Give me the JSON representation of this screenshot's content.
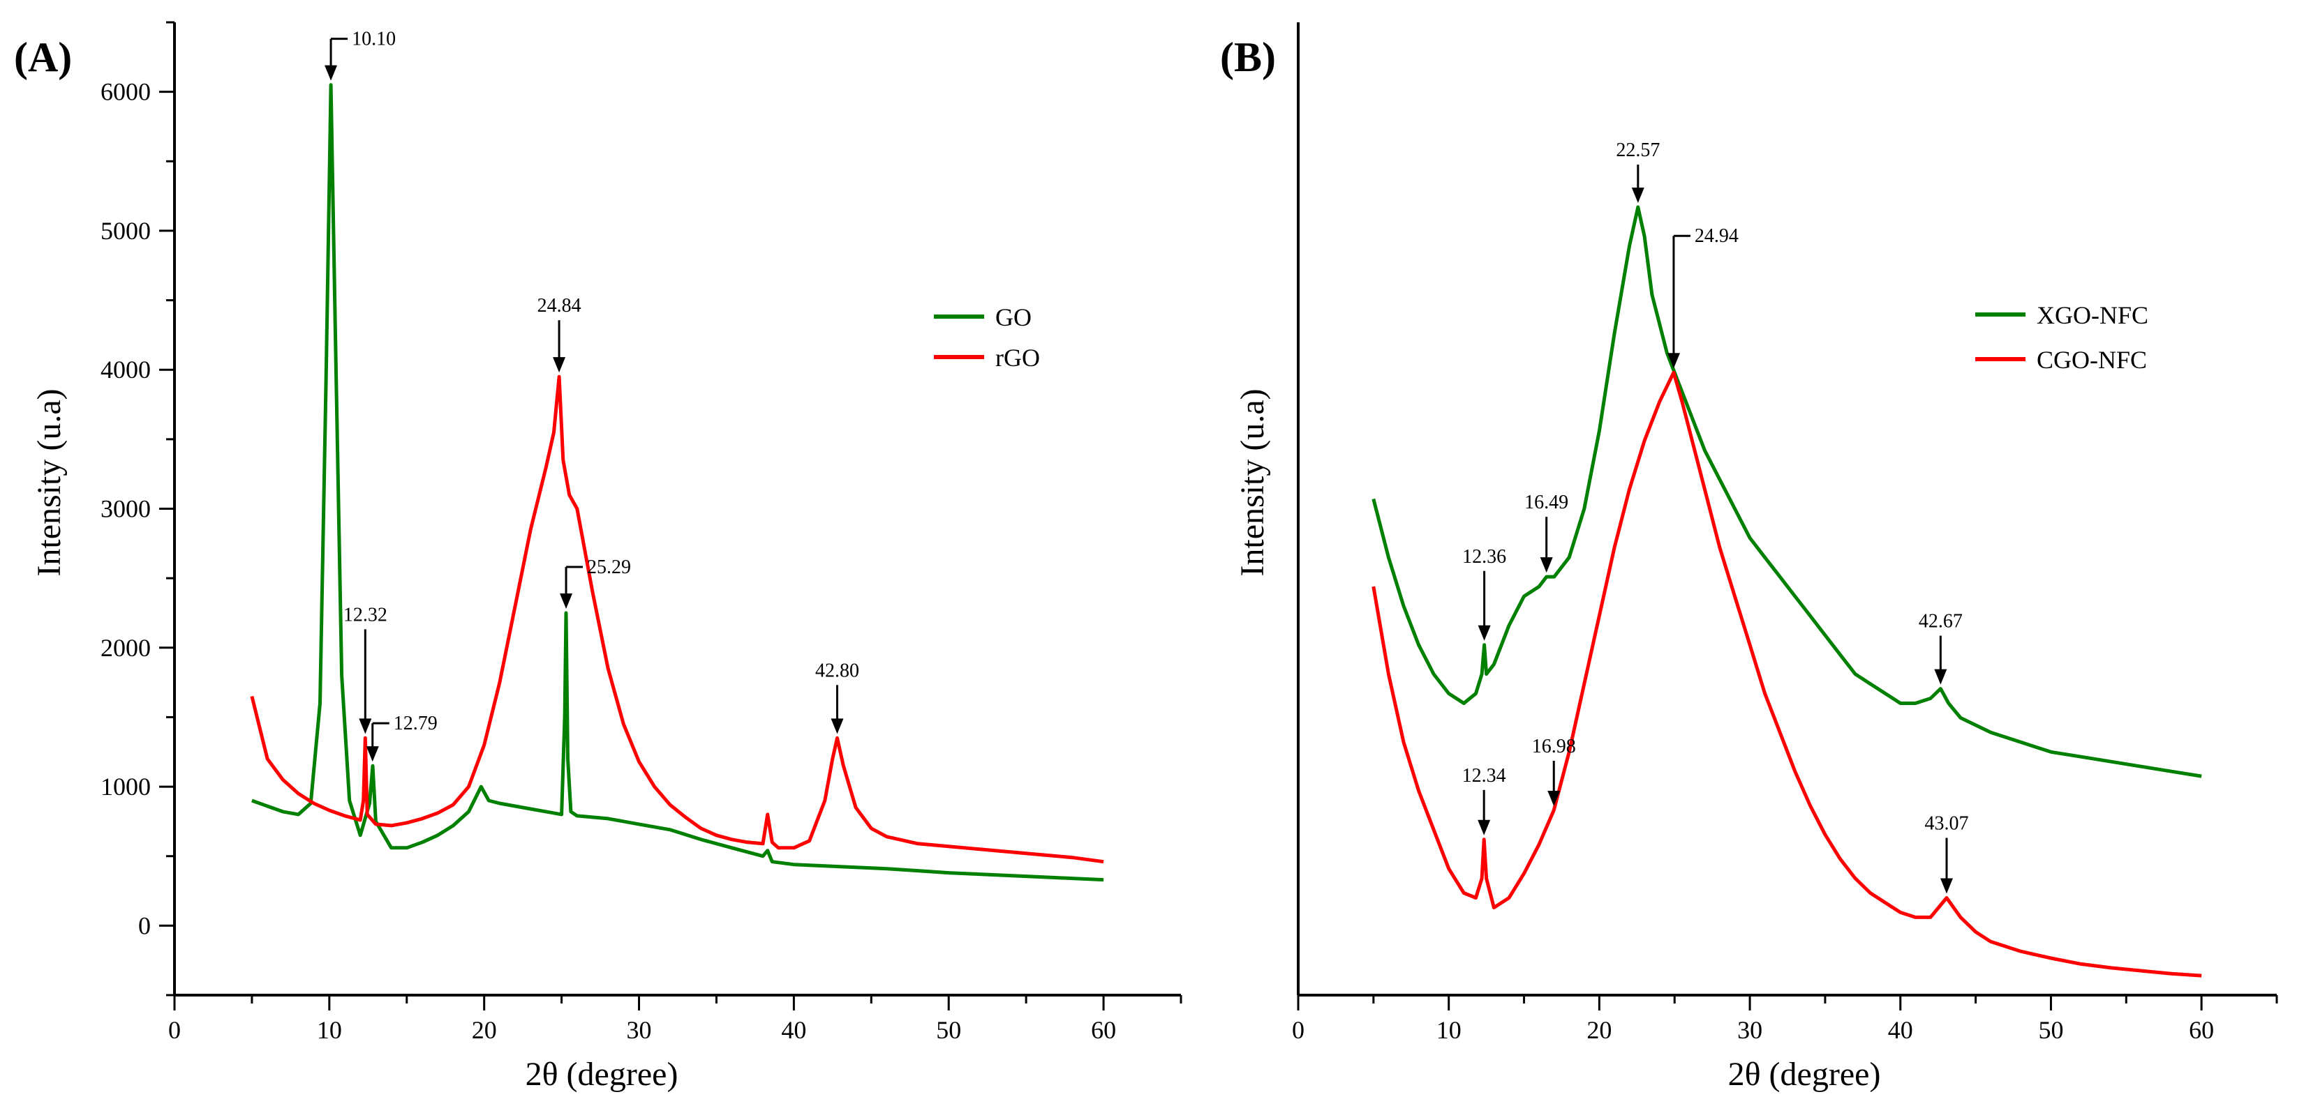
{
  "chart_data": [
    {
      "type": "line",
      "panel_label": "(A)",
      "xlabel": "2θ (degree)",
      "ylabel": "Intensity (u.a)",
      "xlim": [
        0,
        65
      ],
      "ylim": [
        -500,
        6500
      ],
      "xticks": [
        "0",
        "10",
        "20",
        "30",
        "40",
        "50",
        "60"
      ],
      "yticks": [
        "0",
        "1000",
        "2000",
        "3000",
        "4000",
        "5000",
        "6000"
      ],
      "legend_position": "upper-right",
      "series": [
        {
          "name": "GO",
          "color": "#008000",
          "x": [
            5,
            6,
            7,
            8,
            8.8,
            9.4,
            9.8,
            10.1,
            10.4,
            10.8,
            11.3,
            12,
            12.6,
            12.8,
            13,
            14,
            15,
            16,
            17,
            18,
            19,
            19.8,
            20.3,
            21,
            22,
            23,
            24,
            25,
            25.2,
            25.29,
            25.4,
            25.6,
            26,
            28,
            30,
            32,
            34,
            36,
            38,
            38.3,
            38.6,
            40,
            42,
            44,
            46,
            48,
            50,
            52,
            54,
            56,
            58,
            60
          ],
          "y": [
            900,
            860,
            820,
            800,
            880,
            1600,
            4000,
            6050,
            4200,
            1800,
            900,
            650,
            880,
            1150,
            750,
            560,
            560,
            600,
            650,
            720,
            820,
            1000,
            900,
            880,
            860,
            840,
            820,
            800,
            1500,
            2250,
            1200,
            820,
            790,
            770,
            730,
            690,
            620,
            560,
            500,
            540,
            460,
            440,
            430,
            420,
            410,
            395,
            380,
            370,
            360,
            350,
            340,
            330
          ]
        },
        {
          "name": "rGO",
          "color": "#ff0000",
          "x": [
            5,
            6,
            7,
            8,
            9,
            10,
            11,
            12,
            12.2,
            12.32,
            12.45,
            13,
            14,
            15,
            16,
            17,
            18,
            19,
            20,
            21,
            22,
            23,
            24,
            24.5,
            24.84,
            25.1,
            25.5,
            26,
            27,
            28,
            29,
            30,
            31,
            32,
            33,
            34,
            35,
            36,
            37,
            38,
            38.3,
            38.6,
            39,
            40,
            41,
            42,
            42.5,
            42.8,
            43.2,
            44,
            45,
            46,
            48,
            50,
            52,
            54,
            56,
            58,
            60
          ],
          "y": [
            1650,
            1200,
            1050,
            950,
            880,
            830,
            790,
            760,
            900,
            1350,
            800,
            730,
            720,
            740,
            770,
            810,
            870,
            1000,
            1300,
            1750,
            2300,
            2850,
            3300,
            3550,
            3950,
            3350,
            3100,
            3000,
            2400,
            1850,
            1450,
            1180,
            1000,
            870,
            780,
            700,
            650,
            620,
            600,
            590,
            800,
            600,
            560,
            560,
            610,
            900,
            1200,
            1350,
            1150,
            850,
            700,
            640,
            590,
            570,
            550,
            530,
            510,
            490,
            460
          ]
        }
      ],
      "annotations": [
        {
          "label": "10.10",
          "x": 10.1,
          "y": 6050
        },
        {
          "label": "12.32",
          "x": 12.32,
          "y": 1350
        },
        {
          "label": "12.79",
          "x": 12.79,
          "y": 1150
        },
        {
          "label": "24.84",
          "x": 24.84,
          "y": 3950
        },
        {
          "label": "25.29",
          "x": 25.29,
          "y": 2250
        },
        {
          "label": "42.80",
          "x": 42.8,
          "y": 1350
        }
      ]
    },
    {
      "type": "line",
      "panel_label": "(B)",
      "xlabel": "2θ (degree)",
      "ylabel": "Intensity (u.a)",
      "xlim": [
        0,
        65
      ],
      "ylim": [
        0,
        100
      ],
      "xticks": [
        "0",
        "10",
        "20",
        "30",
        "40",
        "50",
        "60"
      ],
      "yticks": [],
      "legend_position": "upper-right",
      "series": [
        {
          "name": "XGO-NFC",
          "color": "#008000",
          "x": [
            5,
            6,
            7,
            8,
            9,
            10,
            11,
            11.8,
            12.2,
            12.36,
            12.5,
            13,
            14,
            15,
            16,
            16.49,
            17,
            18,
            19,
            20,
            21,
            22,
            22.57,
            23,
            23.5,
            24,
            24.5,
            25,
            26,
            27,
            28,
            29,
            30,
            31,
            32,
            33,
            34,
            35,
            36,
            37,
            38,
            39,
            40,
            41,
            42,
            42.67,
            43.2,
            44,
            46,
            48,
            50,
            52,
            54,
            56,
            58,
            60
          ],
          "y": [
            51,
            45,
            40,
            36,
            33,
            31,
            30,
            31,
            33,
            36,
            33,
            34,
            38,
            41,
            42,
            43,
            43,
            45,
            50,
            58,
            68,
            77,
            81,
            78,
            72,
            69,
            66,
            64,
            60,
            56,
            53,
            50,
            47,
            45,
            43,
            41,
            39,
            37,
            35,
            33,
            32,
            31,
            30,
            30,
            30.5,
            31.5,
            30,
            28.5,
            27,
            26,
            25,
            24.5,
            24,
            23.5,
            23,
            22.5
          ]
        },
        {
          "name": "CGO-NFC",
          "color": "#ff0000",
          "x": [
            5,
            6,
            7,
            8,
            9,
            10,
            11,
            11.8,
            12.2,
            12.34,
            12.5,
            13,
            14,
            15,
            16,
            16.98,
            18,
            19,
            20,
            21,
            22,
            23,
            24,
            24.94,
            25.5,
            26,
            27,
            28,
            29,
            30,
            31,
            32,
            33,
            34,
            35,
            36,
            37,
            38,
            39,
            40,
            41,
            42,
            43.07,
            44,
            45,
            46,
            48,
            50,
            52,
            54,
            56,
            58,
            60
          ],
          "y": [
            42,
            33,
            26,
            21,
            17,
            13,
            10.5,
            10,
            12,
            16,
            12,
            9,
            10,
            12.5,
            15.5,
            19,
            25,
            32,
            39,
            46,
            52,
            57,
            61,
            64,
            61,
            58,
            52,
            46,
            41,
            36,
            31,
            27,
            23,
            19.5,
            16.5,
            14,
            12,
            10.5,
            9.5,
            8.5,
            8,
            8,
            10,
            8,
            6.5,
            5.5,
            4.5,
            3.8,
            3.2,
            2.8,
            2.5,
            2.2,
            2
          ]
        }
      ],
      "annotations": [
        {
          "label": "12.36",
          "x": 12.36,
          "y": 36
        },
        {
          "label": "16.49",
          "x": 16.49,
          "y": 43
        },
        {
          "label": "22.57",
          "x": 22.57,
          "y": 81
        },
        {
          "label": "24.94",
          "x": 24.94,
          "y": 64
        },
        {
          "label": "42.67",
          "x": 42.67,
          "y": 31.5
        },
        {
          "label": "12.34",
          "x": 12.34,
          "y": 16
        },
        {
          "label": "16.98",
          "x": 16.98,
          "y": 19
        },
        {
          "label": "43.07",
          "x": 43.07,
          "y": 10
        }
      ]
    }
  ]
}
